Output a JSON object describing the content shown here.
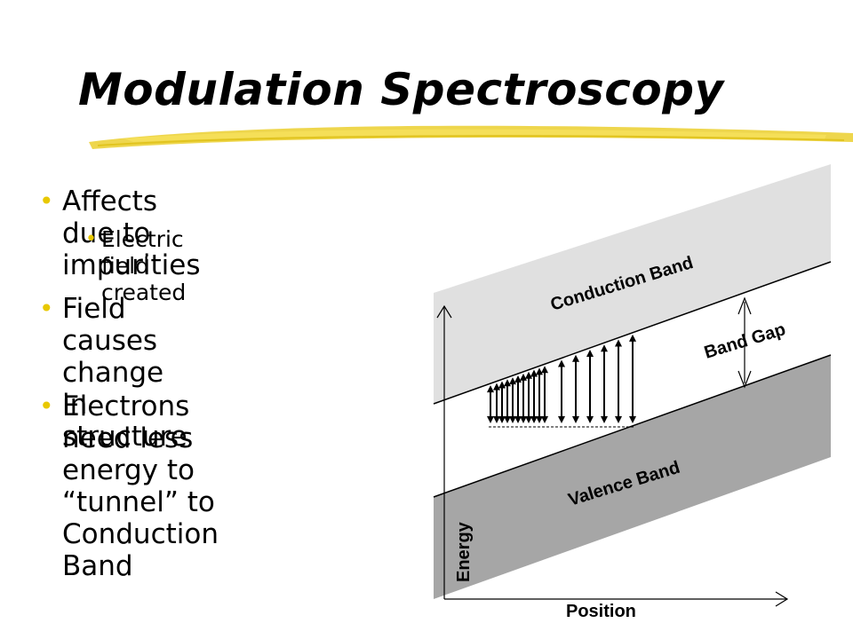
{
  "slide": {
    "title": "Modulation Spectroscopy",
    "bullets": [
      {
        "text": "Affects due to impurities",
        "level": 1
      },
      {
        "text": "Electric field created",
        "level": 2
      },
      {
        "text": "Field causes change in structure",
        "level": 1,
        "lines": [
          "Field causes change in",
          "structure"
        ]
      },
      {
        "text": "Electrons need less energy to “tunnel” to Conduction Band",
        "level": 1,
        "lines": [
          "Electrons need less",
          "energy to “tunnel” to",
          "Conduction Band"
        ]
      }
    ]
  },
  "diagram": {
    "conduction_label": "Conduction Band",
    "band_gap_label": "Band Gap",
    "valence_label": "Valence Band",
    "y_axis_label": "Energy",
    "x_axis_label": "Position",
    "colors": {
      "conduction": "#e0e0e0",
      "valence": "#a6a6a6",
      "accent": "#e8c800"
    }
  }
}
